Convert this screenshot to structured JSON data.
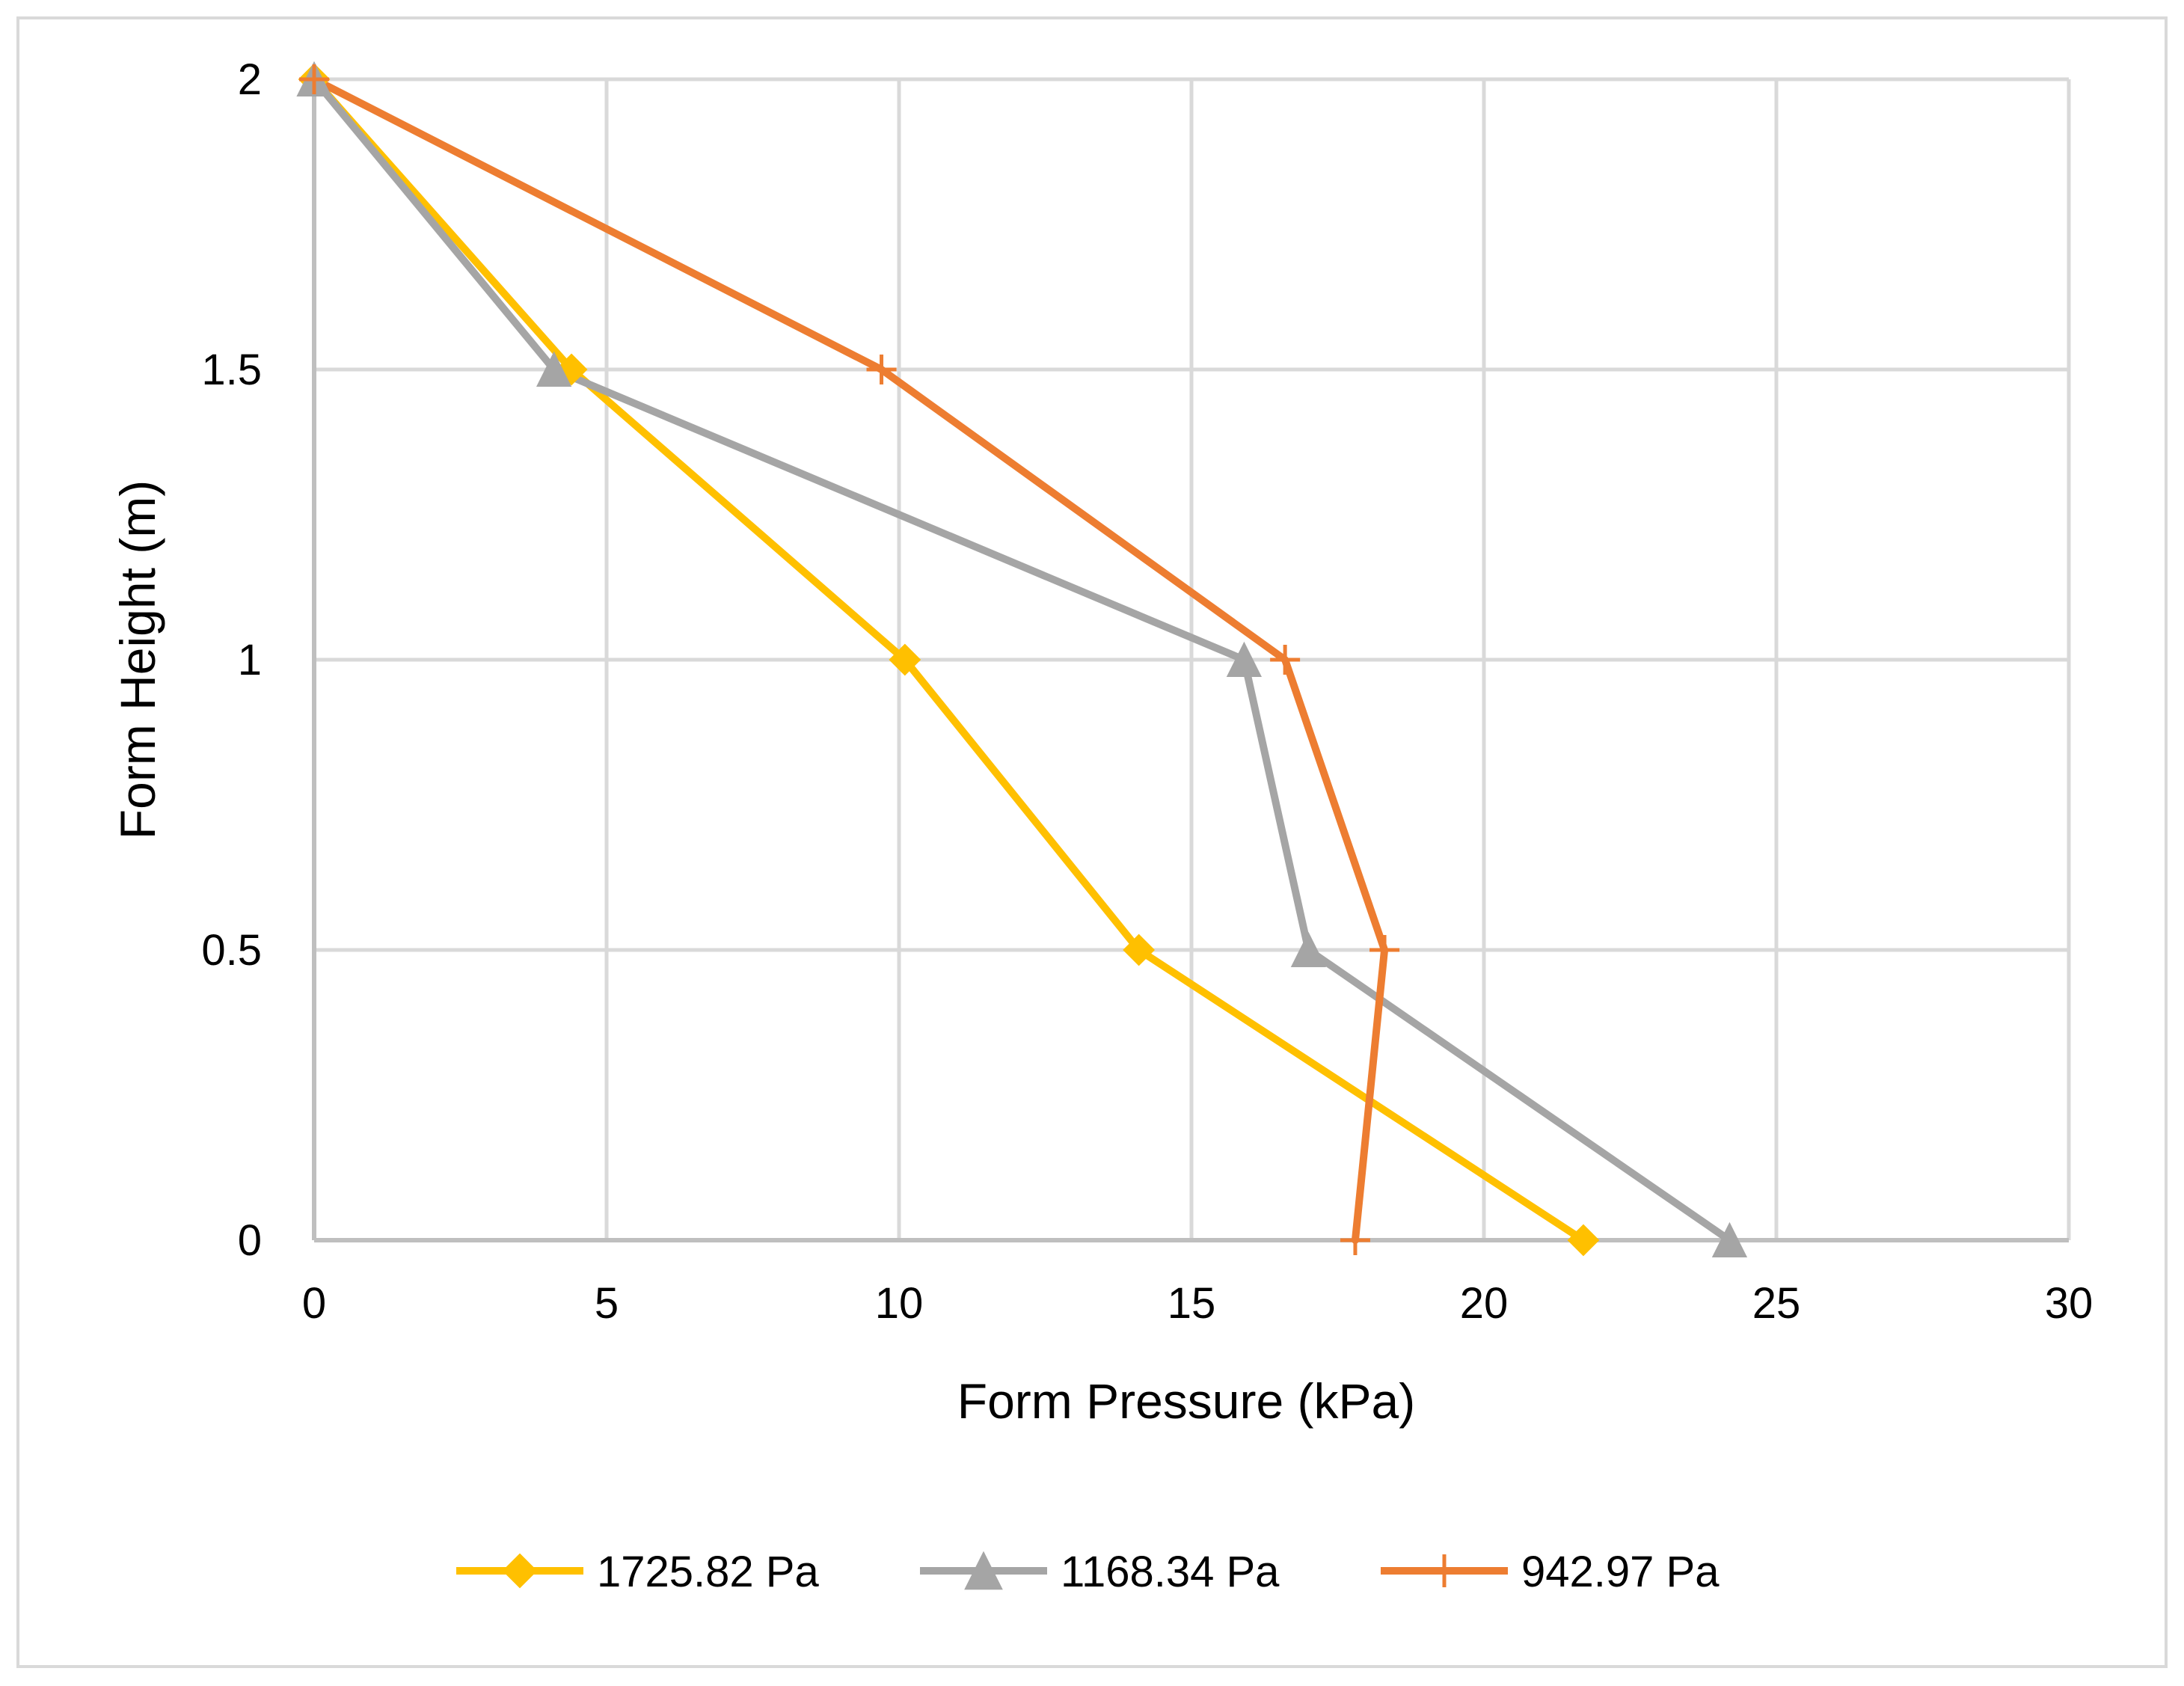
{
  "chart_data": {
    "type": "line",
    "title": "",
    "xlabel": "Form Pressure (kPa)",
    "ylabel": "Form Height (m)",
    "xlim": [
      0,
      30
    ],
    "ylim": [
      0,
      2
    ],
    "xticks": [
      0,
      5,
      10,
      15,
      20,
      25,
      30
    ],
    "yticks": [
      0,
      0.5,
      1,
      1.5,
      2
    ],
    "xtick_labels": [
      "0",
      "5",
      "10",
      "15",
      "20",
      "25",
      "30"
    ],
    "ytick_labels": [
      "0",
      "0.5",
      "1",
      "1.5",
      "2"
    ],
    "grid": true,
    "legend_position": "bottom",
    "series": [
      {
        "name": "1725.82 Pa",
        "color": "#ffc000",
        "marker": "diamond",
        "x": [
          21.7,
          14.1,
          10.1,
          4.4,
          0
        ],
        "y": [
          0,
          0.5,
          1,
          1.5,
          2
        ]
      },
      {
        "name": "1168.34 Pa",
        "color": "#a5a5a5",
        "marker": "triangle",
        "x": [
          24.2,
          17.0,
          15.9,
          4.1,
          0
        ],
        "y": [
          0,
          0.5,
          1,
          1.5,
          2
        ]
      },
      {
        "name": "942.97 Pa",
        "color": "#ed7d31",
        "marker": "plus",
        "x": [
          17.8,
          18.3,
          16.6,
          9.7,
          0
        ],
        "y": [
          0,
          0.5,
          1,
          1.5,
          2
        ]
      }
    ]
  }
}
